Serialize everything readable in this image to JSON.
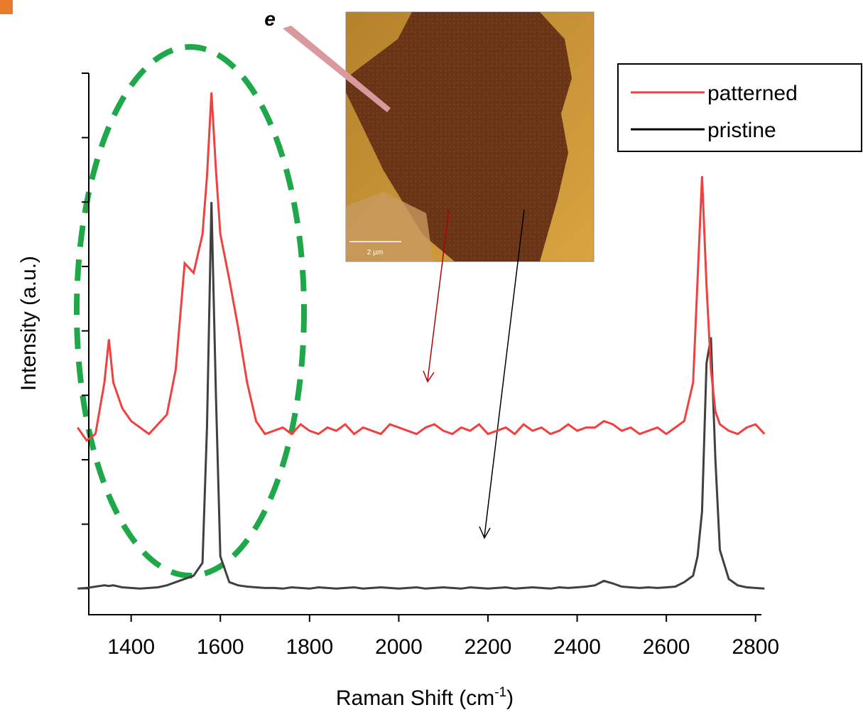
{
  "chart_data": {
    "type": "line",
    "x_label": {
      "text": "Raman Shift (cm",
      "superscript": "-1",
      "suffix": ")"
    },
    "y_label": "Intensity (a.u.)",
    "annotations": {
      "inset_marker": "e",
      "scale_bar": "2 µm"
    },
    "xlim": [
      1305,
      2810
    ],
    "xticks": [
      1400,
      1600,
      1800,
      2000,
      2200,
      2400,
      2600,
      2800
    ],
    "ylim": [
      -0.35,
      8
    ],
    "yticks": [
      0,
      1,
      2,
      3,
      4,
      5,
      6,
      7,
      8
    ],
    "legend": "top-right",
    "x": [
      1280,
      1300,
      1320,
      1340,
      1350,
      1360,
      1380,
      1400,
      1420,
      1440,
      1460,
      1480,
      1500,
      1520,
      1540,
      1560,
      1570,
      1580,
      1590,
      1600,
      1620,
      1640,
      1660,
      1680,
      1700,
      1720,
      1740,
      1760,
      1780,
      1800,
      1820,
      1840,
      1860,
      1880,
      1900,
      1920,
      1940,
      1960,
      1980,
      2000,
      2020,
      2040,
      2060,
      2080,
      2100,
      2120,
      2140,
      2160,
      2180,
      2200,
      2220,
      2240,
      2260,
      2280,
      2300,
      2320,
      2340,
      2360,
      2380,
      2400,
      2420,
      2440,
      2460,
      2480,
      2500,
      2520,
      2540,
      2560,
      2580,
      2600,
      2620,
      2640,
      2660,
      2670,
      2680,
      2690,
      2700,
      2710,
      2720,
      2740,
      2760,
      2780,
      2800,
      2820
    ],
    "series": [
      {
        "name": "patterned",
        "color": "#f04040",
        "values": [
          2.5,
          2.3,
          2.4,
          3.2,
          3.87,
          3.2,
          2.8,
          2.6,
          2.5,
          2.4,
          2.55,
          2.7,
          3.4,
          5.05,
          4.9,
          5.5,
          6.4,
          7.7,
          6.5,
          5.5,
          4.8,
          4.05,
          3.2,
          2.6,
          2.4,
          2.45,
          2.5,
          2.4,
          2.55,
          2.45,
          2.4,
          2.5,
          2.45,
          2.55,
          2.4,
          2.5,
          2.45,
          2.4,
          2.55,
          2.5,
          2.45,
          2.4,
          2.5,
          2.55,
          2.45,
          2.4,
          2.5,
          2.45,
          2.55,
          2.4,
          2.45,
          2.5,
          2.4,
          2.55,
          2.45,
          2.5,
          2.4,
          2.45,
          2.55,
          2.45,
          2.5,
          2.5,
          2.6,
          2.55,
          2.45,
          2.5,
          2.4,
          2.45,
          2.5,
          2.4,
          2.5,
          2.6,
          3.2,
          4.8,
          6.4,
          4.7,
          3.4,
          2.75,
          2.55,
          2.45,
          2.4,
          2.5,
          2.55,
          2.4
        ]
      },
      {
        "name": "pristine",
        "color": "#404040",
        "values": [
          0,
          0.01,
          0.03,
          0.05,
          0.04,
          0.05,
          0.02,
          0.01,
          0,
          0.01,
          0.02,
          0.05,
          0.1,
          0.15,
          0.2,
          0.4,
          2.5,
          6.0,
          3.0,
          0.5,
          0.1,
          0.05,
          0.03,
          0.02,
          0.01,
          0.01,
          0,
          0.02,
          0.01,
          0,
          0.02,
          0.01,
          0,
          0.01,
          0.02,
          0,
          0.01,
          0.02,
          0.01,
          0,
          0.01,
          0.02,
          0,
          0.01,
          0.02,
          0.01,
          0,
          0.02,
          0.01,
          0,
          0.01,
          0.02,
          0,
          0.01,
          0.02,
          0.01,
          0,
          0.02,
          0.01,
          0.02,
          0.03,
          0.05,
          0.12,
          0.08,
          0.03,
          0.02,
          0.01,
          0.02,
          0.01,
          0.02,
          0.03,
          0.1,
          0.2,
          0.5,
          1.2,
          3.5,
          3.9,
          2.0,
          0.6,
          0.15,
          0.05,
          0.02,
          0.01,
          0
        ]
      }
    ]
  }
}
